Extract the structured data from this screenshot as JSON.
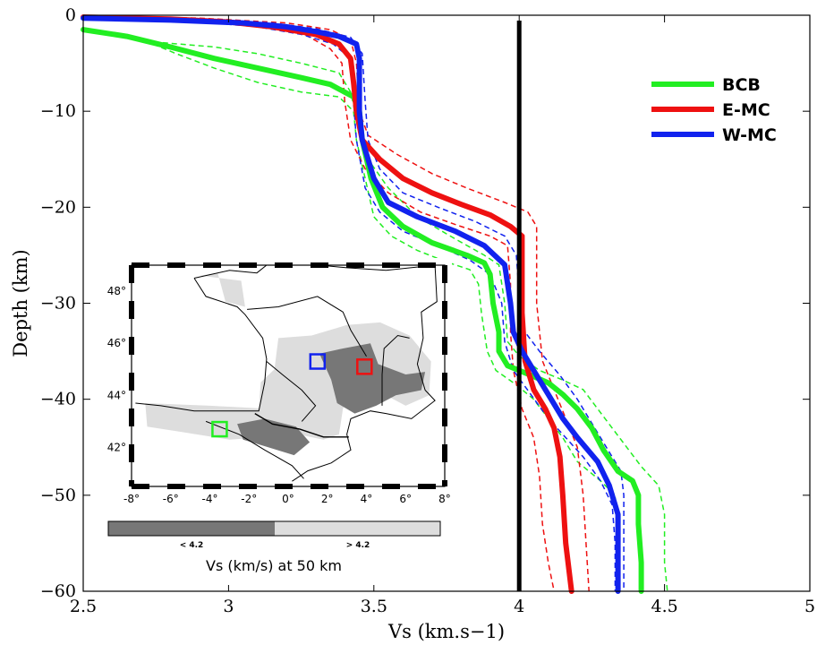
{
  "chart_data": {
    "type": "line",
    "xlabel": "Vs (km.s−1)",
    "ylabel": "Depth (km)",
    "xlim": [
      2.5,
      5
    ],
    "ylim": [
      -60,
      0
    ],
    "x_ticks": [
      2.5,
      3,
      3.5,
      4,
      4.5,
      5
    ],
    "x_tick_labels": [
      "2.5",
      "3",
      "3.5",
      "4",
      "4.5",
      "5"
    ],
    "y_ticks": [
      0,
      -10,
      -20,
      -30,
      -40,
      -50,
      -60
    ],
    "y_tick_labels": [
      "0",
      "−10",
      "−20",
      "−30",
      "−40",
      "−50",
      "−60"
    ],
    "legend_position": "top-right",
    "reference_line": {
      "x": 4.0,
      "color": "#000000"
    },
    "series": [
      {
        "name": "BCB",
        "color": "#22ee22",
        "points": [
          [
            2.5,
            -1.5
          ],
          [
            2.65,
            -2.2
          ],
          [
            2.8,
            -3.3
          ],
          [
            2.95,
            -4.5
          ],
          [
            3.1,
            -5.5
          ],
          [
            3.25,
            -6.5
          ],
          [
            3.35,
            -7.2
          ],
          [
            3.43,
            -8.5
          ],
          [
            3.45,
            -10
          ],
          [
            3.46,
            -13
          ],
          [
            3.49,
            -17
          ],
          [
            3.53,
            -20
          ],
          [
            3.6,
            -22
          ],
          [
            3.7,
            -23.7
          ],
          [
            3.82,
            -25
          ],
          [
            3.88,
            -25.8
          ],
          [
            3.9,
            -27
          ],
          [
            3.91,
            -30
          ],
          [
            3.93,
            -33
          ],
          [
            3.93,
            -35
          ],
          [
            3.96,
            -36.5
          ],
          [
            4.04,
            -37.5
          ],
          [
            4.1,
            -38.3
          ],
          [
            4.15,
            -39.5
          ],
          [
            4.2,
            -41
          ],
          [
            4.25,
            -43
          ],
          [
            4.29,
            -45.3
          ],
          [
            4.34,
            -47.5
          ],
          [
            4.39,
            -48.5
          ],
          [
            4.41,
            -50
          ],
          [
            4.41,
            -53
          ],
          [
            4.42,
            -57
          ],
          [
            4.42,
            -60
          ]
        ],
        "upper": [
          [
            2.5,
            -1.5
          ],
          [
            2.6,
            -2.0
          ],
          [
            2.75,
            -2.8
          ],
          [
            2.95,
            -3.3
          ],
          [
            3.1,
            -4.0
          ],
          [
            3.25,
            -5.0
          ],
          [
            3.38,
            -6.0
          ],
          [
            3.42,
            -8
          ],
          [
            3.45,
            -12
          ],
          [
            3.48,
            -15
          ],
          [
            3.55,
            -18
          ],
          [
            3.65,
            -21
          ],
          [
            3.78,
            -23.3
          ],
          [
            3.88,
            -25
          ],
          [
            3.93,
            -26
          ],
          [
            3.95,
            -30
          ],
          [
            3.96,
            -34
          ],
          [
            4.0,
            -35.5
          ],
          [
            4.07,
            -37
          ],
          [
            4.15,
            -38
          ],
          [
            4.22,
            -39
          ],
          [
            4.27,
            -41
          ],
          [
            4.32,
            -43
          ],
          [
            4.37,
            -45
          ],
          [
            4.42,
            -47
          ],
          [
            4.48,
            -49
          ],
          [
            4.5,
            -52
          ],
          [
            4.5,
            -57
          ],
          [
            4.51,
            -60
          ]
        ],
        "lower": [
          [
            2.5,
            -1.5
          ],
          [
            2.7,
            -2.5
          ],
          [
            2.82,
            -4.0
          ],
          [
            2.95,
            -5.5
          ],
          [
            3.1,
            -7.0
          ],
          [
            3.25,
            -8.0
          ],
          [
            3.38,
            -8.5
          ],
          [
            3.43,
            -10
          ],
          [
            3.44,
            -13
          ],
          [
            3.47,
            -17
          ],
          [
            3.5,
            -21
          ],
          [
            3.56,
            -23
          ],
          [
            3.65,
            -24.5
          ],
          [
            3.76,
            -25.8
          ],
          [
            3.83,
            -26.5
          ],
          [
            3.86,
            -28
          ],
          [
            3.87,
            -31
          ],
          [
            3.89,
            -35
          ],
          [
            3.92,
            -37
          ],
          [
            3.99,
            -38.5
          ],
          [
            4.05,
            -40
          ],
          [
            4.1,
            -42
          ],
          [
            4.15,
            -44
          ],
          [
            4.2,
            -46.5
          ],
          [
            4.28,
            -48.5
          ],
          [
            4.33,
            -50
          ],
          [
            4.34,
            -54
          ],
          [
            4.34,
            -60
          ]
        ]
      },
      {
        "name": "E-MC",
        "color": "#ee1111",
        "points": [
          [
            2.5,
            -0.2
          ],
          [
            2.8,
            -0.4
          ],
          [
            3.0,
            -0.7
          ],
          [
            3.15,
            -1.2
          ],
          [
            3.3,
            -2.0
          ],
          [
            3.38,
            -3.0
          ],
          [
            3.42,
            -4.5
          ],
          [
            3.43,
            -7
          ],
          [
            3.44,
            -10
          ],
          [
            3.46,
            -13
          ],
          [
            3.52,
            -15
          ],
          [
            3.6,
            -17
          ],
          [
            3.7,
            -18.5
          ],
          [
            3.8,
            -19.7
          ],
          [
            3.9,
            -20.8
          ],
          [
            3.97,
            -22
          ],
          [
            4.01,
            -23
          ],
          [
            4.01,
            -26
          ],
          [
            4.01,
            -31
          ],
          [
            4.02,
            -36
          ],
          [
            4.05,
            -39
          ],
          [
            4.09,
            -41
          ],
          [
            4.12,
            -43
          ],
          [
            4.14,
            -46
          ],
          [
            4.15,
            -50
          ],
          [
            4.16,
            -55
          ],
          [
            4.18,
            -60
          ]
        ],
        "upper": [
          [
            2.5,
            -0.1
          ],
          [
            2.9,
            -0.3
          ],
          [
            3.2,
            -0.8
          ],
          [
            3.35,
            -1.5
          ],
          [
            3.42,
            -2.5
          ],
          [
            3.44,
            -5
          ],
          [
            3.45,
            -10
          ],
          [
            3.48,
            -12.5
          ],
          [
            3.58,
            -14.5
          ],
          [
            3.7,
            -16.5
          ],
          [
            3.82,
            -18
          ],
          [
            3.95,
            -19.5
          ],
          [
            4.03,
            -20.5
          ],
          [
            4.06,
            -22
          ],
          [
            4.06,
            -30
          ],
          [
            4.08,
            -36
          ],
          [
            4.12,
            -39
          ],
          [
            4.16,
            -42
          ],
          [
            4.2,
            -45
          ],
          [
            4.22,
            -50
          ],
          [
            4.23,
            -55
          ],
          [
            4.24,
            -60
          ]
        ],
        "lower": [
          [
            2.5,
            -0.3
          ],
          [
            2.9,
            -0.5
          ],
          [
            3.1,
            -1.0
          ],
          [
            3.25,
            -1.8
          ],
          [
            3.35,
            -3.5
          ],
          [
            3.39,
            -5
          ],
          [
            3.4,
            -9
          ],
          [
            3.42,
            -13
          ],
          [
            3.47,
            -16
          ],
          [
            3.55,
            -18.5
          ],
          [
            3.66,
            -20.5
          ],
          [
            3.78,
            -21.8
          ],
          [
            3.9,
            -23
          ],
          [
            3.96,
            -24
          ],
          [
            3.97,
            -28
          ],
          [
            3.97,
            -33
          ],
          [
            3.98,
            -37
          ],
          [
            4.01,
            -41
          ],
          [
            4.05,
            -44
          ],
          [
            4.07,
            -48
          ],
          [
            4.08,
            -53
          ],
          [
            4.1,
            -57
          ],
          [
            4.12,
            -60
          ]
        ]
      },
      {
        "name": "W-MC",
        "color": "#1122ee",
        "points": [
          [
            2.5,
            -0.3
          ],
          [
            2.8,
            -0.5
          ],
          [
            3.05,
            -0.8
          ],
          [
            3.2,
            -1.2
          ],
          [
            3.3,
            -1.7
          ],
          [
            3.38,
            -2.2
          ],
          [
            3.44,
            -3.0
          ],
          [
            3.45,
            -4.5
          ],
          [
            3.45,
            -7
          ],
          [
            3.45,
            -10
          ],
          [
            3.46,
            -13
          ],
          [
            3.5,
            -17
          ],
          [
            3.55,
            -19.5
          ],
          [
            3.65,
            -21
          ],
          [
            3.78,
            -22.5
          ],
          [
            3.88,
            -24
          ],
          [
            3.95,
            -26
          ],
          [
            3.97,
            -30
          ],
          [
            3.98,
            -33
          ],
          [
            4.01,
            -35
          ],
          [
            4.05,
            -37
          ],
          [
            4.1,
            -39.5
          ],
          [
            4.15,
            -42
          ],
          [
            4.2,
            -44
          ],
          [
            4.27,
            -46.5
          ],
          [
            4.31,
            -49
          ],
          [
            4.34,
            -52
          ],
          [
            4.34,
            -60
          ]
        ],
        "upper": [
          [
            2.5,
            -0.2
          ],
          [
            2.9,
            -0.4
          ],
          [
            3.15,
            -0.8
          ],
          [
            3.3,
            -1.4
          ],
          [
            3.42,
            -2.3
          ],
          [
            3.46,
            -4
          ],
          [
            3.47,
            -9
          ],
          [
            3.48,
            -13
          ],
          [
            3.52,
            -16
          ],
          [
            3.6,
            -18.5
          ],
          [
            3.72,
            -20
          ],
          [
            3.85,
            -21.5
          ],
          [
            3.95,
            -23
          ],
          [
            3.99,
            -25
          ],
          [
            4.0,
            -29
          ],
          [
            4.02,
            -33
          ],
          [
            4.07,
            -35
          ],
          [
            4.14,
            -37.5
          ],
          [
            4.2,
            -40
          ],
          [
            4.25,
            -42.5
          ],
          [
            4.3,
            -45
          ],
          [
            4.35,
            -47.5
          ],
          [
            4.36,
            -50
          ],
          [
            4.36,
            -55
          ],
          [
            4.36,
            -60
          ]
        ],
        "lower": [
          [
            2.5,
            -0.4
          ],
          [
            2.9,
            -0.7
          ],
          [
            3.1,
            -1.2
          ],
          [
            3.25,
            -2.0
          ],
          [
            3.36,
            -3.0
          ],
          [
            3.42,
            -4.5
          ],
          [
            3.43,
            -9
          ],
          [
            3.44,
            -13
          ],
          [
            3.47,
            -18
          ],
          [
            3.52,
            -20.5
          ],
          [
            3.6,
            -22.5
          ],
          [
            3.72,
            -24
          ],
          [
            3.83,
            -25.5
          ],
          [
            3.9,
            -27
          ],
          [
            3.94,
            -30
          ],
          [
            3.95,
            -34
          ],
          [
            3.98,
            -37
          ],
          [
            4.04,
            -39.5
          ],
          [
            4.1,
            -42
          ],
          [
            4.16,
            -44
          ],
          [
            4.22,
            -46
          ],
          [
            4.28,
            -48.5
          ],
          [
            4.32,
            -51
          ],
          [
            4.33,
            -55
          ],
          [
            4.33,
            -60
          ]
        ]
      }
    ],
    "inset": {
      "x_tick_labels": [
        "-8°",
        "-6°",
        "-4°",
        "-2°",
        "0°",
        "2°",
        "4°",
        "6°",
        "8°"
      ],
      "x_ticks": [
        -8,
        -6,
        -4,
        -2,
        0,
        2,
        4,
        6,
        8
      ],
      "y_tick_labels": [
        "48°",
        "46°",
        "44°",
        "42°"
      ],
      "y_ticks": [
        48,
        46,
        44,
        42
      ],
      "lon_range": [
        -8,
        8
      ],
      "lat_range": [
        40.5,
        49
      ],
      "markers": [
        {
          "name": "BCB",
          "lon": -3.5,
          "lat": 42.7,
          "color": "#22ee22"
        },
        {
          "name": "E-MC",
          "lon": 3.9,
          "lat": 45.1,
          "color": "#ee1111"
        },
        {
          "name": "W-MC",
          "lon": 1.5,
          "lat": 45.3,
          "color": "#1122ee"
        }
      ],
      "colorbar": {
        "low_label": "< 4.2",
        "high_label": "> 4.2",
        "low_color": "#777777",
        "high_color": "#dddddd",
        "title": "Vs (km/s) at 50 km"
      }
    }
  }
}
